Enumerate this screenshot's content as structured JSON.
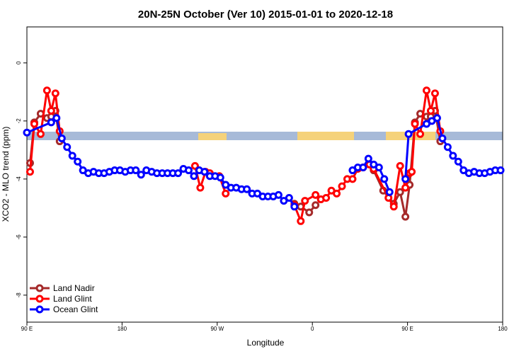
{
  "chart_data": {
    "type": "line",
    "title": "20N-25N October (Ver 10)   2015-01-01 to 2020-12-18",
    "x_label": "Longitude",
    "y_label": "XCO2 - MLO trend (ppm)",
    "xlim": [
      90,
      540
    ],
    "ylim": [
      -8.93,
      1.24
    ],
    "xticks": [
      {
        "value": 90,
        "label": "90 E"
      },
      180,
      {
        "value": 270,
        "label": "90 W"
      },
      {
        "value": 360,
        "label": "0"
      },
      {
        "value": 450,
        "label": "90 E"
      },
      180
    ],
    "yticks": [
      -8,
      -6,
      -4,
      -2,
      0
    ],
    "legend": "bottom-left",
    "series": [
      {
        "name": "Land Nadir",
        "color": "#a52a2a",
        "x": [
          93,
          97,
          103,
          109,
          113,
          117,
          121,
          null,
          343,
          349,
          357,
          363,
          null,
          418,
          427,
          437,
          443,
          448,
          452,
          457,
          462,
          468,
          472,
          476,
          481
        ],
        "values": [
          -3.45,
          -2.05,
          -1.75,
          -1.9,
          -1.85,
          -1.65,
          -2.7,
          null,
          -4.85,
          -4.95,
          -5.15,
          -4.9,
          null,
          -3.7,
          -4.4,
          -4.85,
          -4.45,
          -5.3,
          -4.2,
          -2.05,
          -1.75,
          -1.85,
          -1.85,
          -1.65,
          -2.7
        ]
      },
      {
        "name": "Land Glint",
        "color": "#ff0000",
        "x": [
          93,
          97,
          103,
          109,
          113,
          117,
          121,
          null,
          249,
          254,
          259,
          263,
          272,
          278,
          null,
          343,
          349,
          353,
          363,
          368,
          373,
          378,
          383,
          388,
          393,
          398,
          403,
          408,
          414,
          418,
          432,
          437,
          443,
          448,
          452,
          454,
          457,
          462,
          468,
          472,
          476,
          481
        ],
        "values": [
          -3.75,
          -2.1,
          -2.45,
          -0.95,
          -1.65,
          -1.05,
          -2.35,
          null,
          -3.55,
          -4.3,
          -3.75,
          -3.8,
          -3.9,
          -4.5,
          null,
          -4.9,
          -5.45,
          -4.75,
          -4.55,
          -4.7,
          -4.65,
          -4.4,
          -4.5,
          -4.25,
          -4.0,
          -4.0,
          -3.65,
          -3.6,
          -3.5,
          -3.65,
          -4.65,
          -4.95,
          -3.55,
          -4.3,
          -3.8,
          -3.75,
          -2.1,
          -2.45,
          -0.95,
          -1.65,
          -1.05,
          -2.35
        ]
      },
      {
        "name": "Ocean Glint",
        "color": "#0000ff",
        "x": [
          90,
          113,
          118,
          123,
          128,
          133,
          138,
          143,
          148,
          153,
          158,
          163,
          168,
          173,
          178,
          183,
          188,
          193,
          198,
          203,
          208,
          213,
          218,
          223,
          228,
          233,
          238,
          243,
          248,
          253,
          258,
          263,
          268,
          273,
          278,
          283,
          288,
          293,
          298,
          303,
          308,
          313,
          318,
          323,
          328,
          333,
          338,
          343,
          null,
          398,
          403,
          408,
          413,
          418,
          423,
          428,
          433,
          null,
          448,
          451,
          468,
          473,
          478,
          483,
          488,
          493,
          498,
          503,
          508,
          513,
          518,
          523,
          528,
          533,
          538
        ],
        "values": [
          -2.4,
          -2.05,
          -1.9,
          -2.6,
          -2.9,
          -3.2,
          -3.4,
          -3.7,
          -3.8,
          -3.75,
          -3.8,
          -3.8,
          -3.75,
          -3.7,
          -3.7,
          -3.75,
          -3.7,
          -3.7,
          -3.85,
          -3.7,
          -3.75,
          -3.8,
          -3.8,
          -3.8,
          -3.8,
          -3.8,
          -3.65,
          -3.7,
          -3.9,
          -3.7,
          -3.75,
          -3.9,
          -3.9,
          -3.95,
          -4.2,
          -4.3,
          -4.3,
          -4.35,
          -4.35,
          -4.5,
          -4.5,
          -4.6,
          -4.6,
          -4.6,
          -4.55,
          -4.75,
          -4.65,
          -4.95,
          null,
          -3.7,
          -3.6,
          -3.6,
          -3.3,
          -3.5,
          -3.6,
          -4.0,
          -4.45,
          null,
          -4.0,
          -2.45,
          -2.1,
          -2.0,
          -1.9,
          -2.6,
          -2.9,
          -3.2,
          -3.4,
          -3.7,
          -3.8,
          -3.75,
          -3.8,
          -3.8,
          -3.75,
          -3.7,
          -3.7
        ]
      }
    ]
  }
}
